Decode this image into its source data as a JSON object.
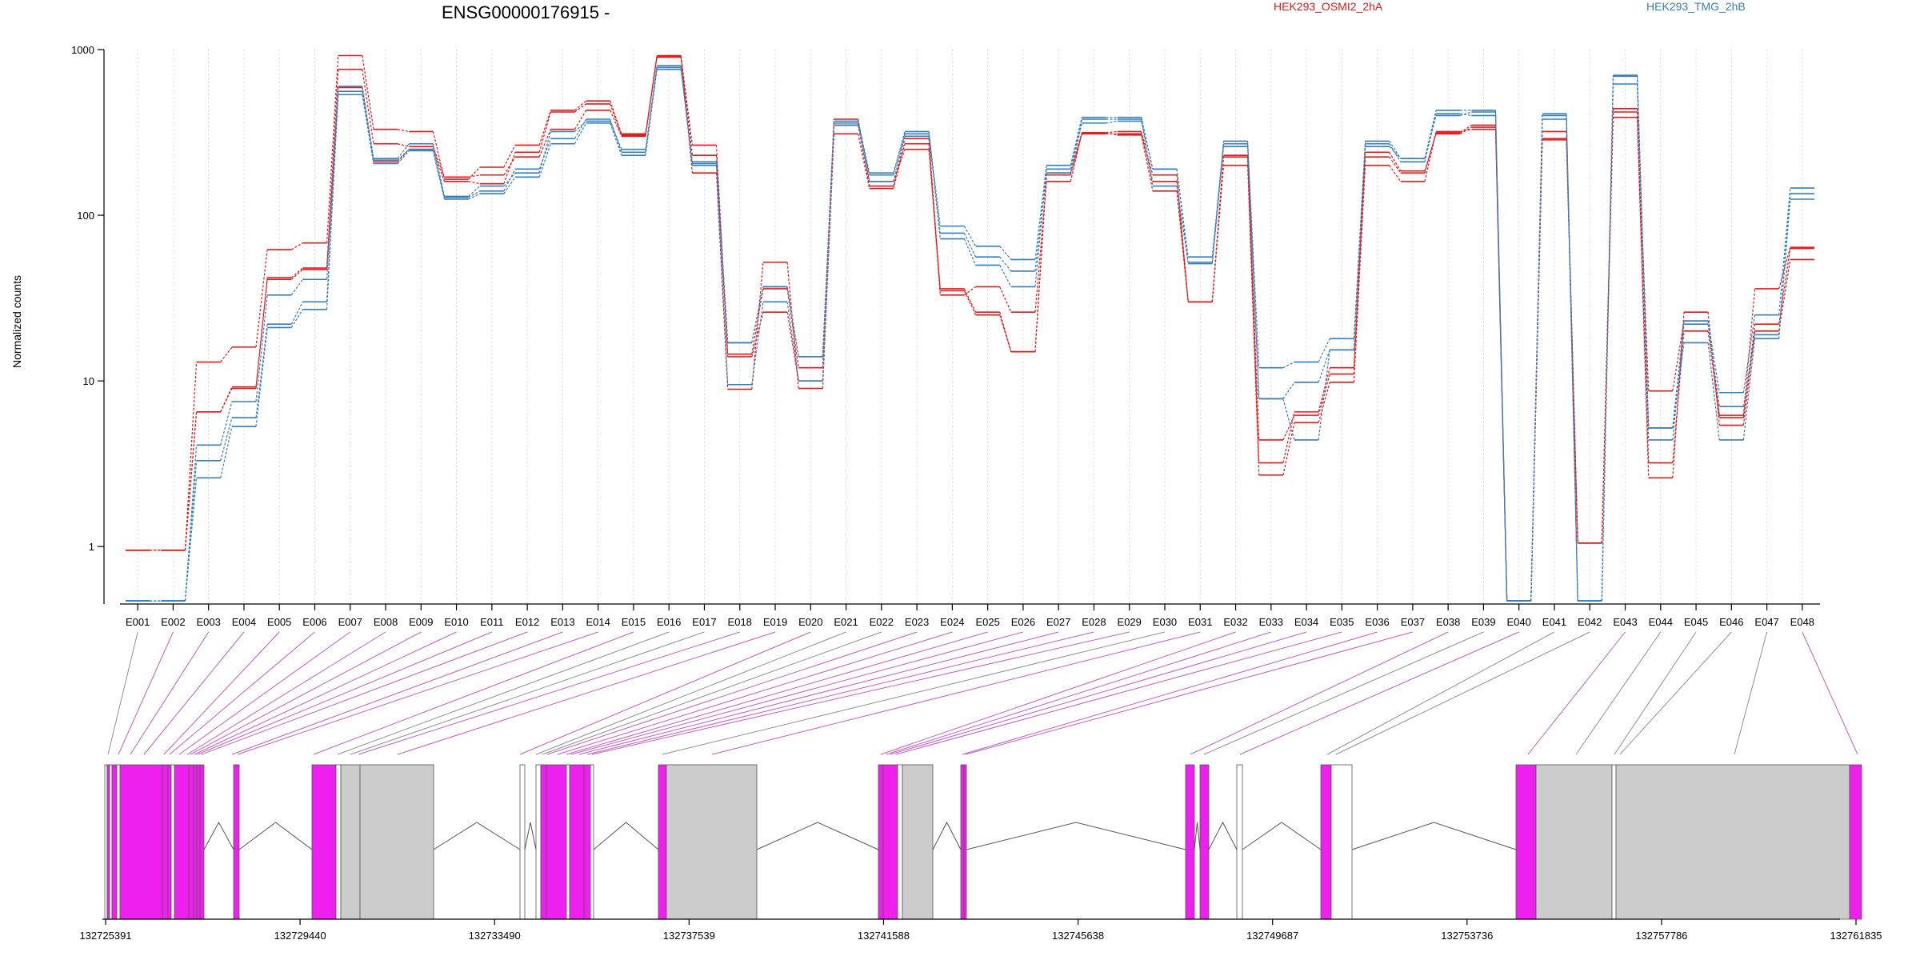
{
  "chart_data": {
    "type": "line",
    "title": "ENSG00000176915 -",
    "ylabel": "Normalized counts",
    "yscale": "log",
    "ylim": [
      0.45,
      1000
    ],
    "yticks": [
      {
        "value": 1,
        "label": "1"
      },
      {
        "value": 10,
        "label": "10"
      },
      {
        "value": 100,
        "label": "100"
      },
      {
        "value": 1000,
        "label": "1000"
      }
    ],
    "grid": "vertical dotted",
    "legend": [
      {
        "name": "HEK293_OSMI2_2hA",
        "color": "#e41a1c"
      },
      {
        "name": "HEK293_TMG_2hB",
        "color": "#377eb8"
      }
    ],
    "categories": [
      "E001",
      "E002",
      "E003",
      "E004",
      "E005",
      "E006",
      "E007",
      "E008",
      "E009",
      "E010",
      "E011",
      "E012",
      "E013",
      "E014",
      "E015",
      "E016",
      "E017",
      "E018",
      "E019",
      "E020",
      "E021",
      "E022",
      "E023",
      "E024",
      "E025",
      "E026",
      "E027",
      "E028",
      "E029",
      "E030",
      "E031",
      "E032",
      "E033",
      "E034",
      "E035",
      "E036",
      "E037",
      "E038",
      "E039",
      "E040",
      "E041",
      "E042",
      "E043",
      "E044",
      "E045",
      "E046",
      "E047",
      "E048"
    ],
    "series": [
      {
        "group": 0,
        "color": "#e41a1c",
        "values": [
          0.95,
          0.95,
          6.5,
          9,
          41,
          47,
          590,
          210,
          250,
          160,
          155,
          240,
          420,
          470,
          305,
          900,
          230,
          14,
          26,
          10,
          350,
          150,
          290,
          35,
          25,
          15,
          175,
          310,
          310,
          160,
          30,
          230,
          3.2,
          6.5,
          12,
          240,
          185,
          310,
          340,
          0.47,
          290,
          1.05,
          420,
          3.2,
          20,
          6,
          22,
          63
        ]
      },
      {
        "group": 0,
        "color": "#e41a1c",
        "values": [
          0.95,
          0.95,
          6.5,
          9.2,
          42,
          48,
          760,
          270,
          260,
          170,
          175,
          225,
          330,
          430,
          300,
          910,
          265,
          14.5,
          36,
          12,
          380,
          160,
          250,
          36,
          26,
          15,
          180,
          315,
          305,
          140,
          30,
          225,
          4.4,
          6.2,
          11,
          225,
          180,
          315,
          350,
          0.47,
          285,
          1.05,
          440,
          8.7,
          23,
          6.2,
          36,
          64
        ]
      },
      {
        "group": 0,
        "color": "#e41a1c",
        "values": [
          0.95,
          0.95,
          13,
          16,
          62,
          68,
          920,
          330,
          320,
          165,
          195,
          265,
          430,
          490,
          310,
          920,
          180,
          8.9,
          52,
          9,
          310,
          145,
          270,
          33,
          37,
          26,
          160,
          315,
          320,
          175,
          30,
          200,
          2.7,
          5.6,
          9.8,
          200,
          160,
          320,
          330,
          0.47,
          320,
          1.05,
          390,
          2.6,
          26,
          5.4,
          20,
          54
        ]
      },
      {
        "group": 1,
        "color": "#377eb8",
        "values": [
          0.47,
          0.47,
          3.3,
          6,
          22,
          30,
          600,
          220,
          270,
          130,
          150,
          180,
          320,
          370,
          250,
          780,
          200,
          17,
          37,
          14,
          360,
          175,
          310,
          86,
          65,
          54,
          200,
          390,
          390,
          190,
          56,
          270,
          12,
          13,
          18,
          280,
          220,
          430,
          430,
          0.47,
          410,
          0.47,
          690,
          5.2,
          23,
          8.5,
          25,
          146
        ]
      },
      {
        "group": 1,
        "color": "#377eb8",
        "values": [
          0.47,
          0.47,
          4.1,
          7.5,
          33,
          41,
          560,
          215,
          250,
          128,
          140,
          190,
          290,
          380,
          240,
          800,
          205,
          9.5,
          30,
          10,
          350,
          160,
          300,
          78,
          56,
          46,
          180,
          360,
          370,
          190,
          51,
          260,
          7.8,
          9.8,
          15.4,
          270,
          210,
          410,
          400,
          0.47,
          380,
          0.47,
          620,
          4.4,
          22,
          7,
          19,
          135
        ]
      },
      {
        "group": 1,
        "color": "#377eb8",
        "values": [
          0.47,
          0.47,
          2.6,
          5.3,
          21,
          27,
          535,
          205,
          245,
          125,
          135,
          170,
          270,
          360,
          230,
          760,
          210,
          17,
          37,
          14,
          370,
          180,
          320,
          72,
          50,
          37,
          190,
          380,
          380,
          150,
          52,
          280,
          7.8,
          4.4,
          15.4,
          260,
          220,
          400,
          420,
          0.47,
          400,
          0.47,
          700,
          5.2,
          17,
          4.4,
          18,
          125
        ]
      }
    ],
    "genomic_axis": {
      "tick_labels": [
        "132725391",
        "132729440",
        "132733490",
        "132737539",
        "132741588",
        "132745638",
        "132749687",
        "132753736",
        "132757786",
        "132761835"
      ]
    }
  }
}
